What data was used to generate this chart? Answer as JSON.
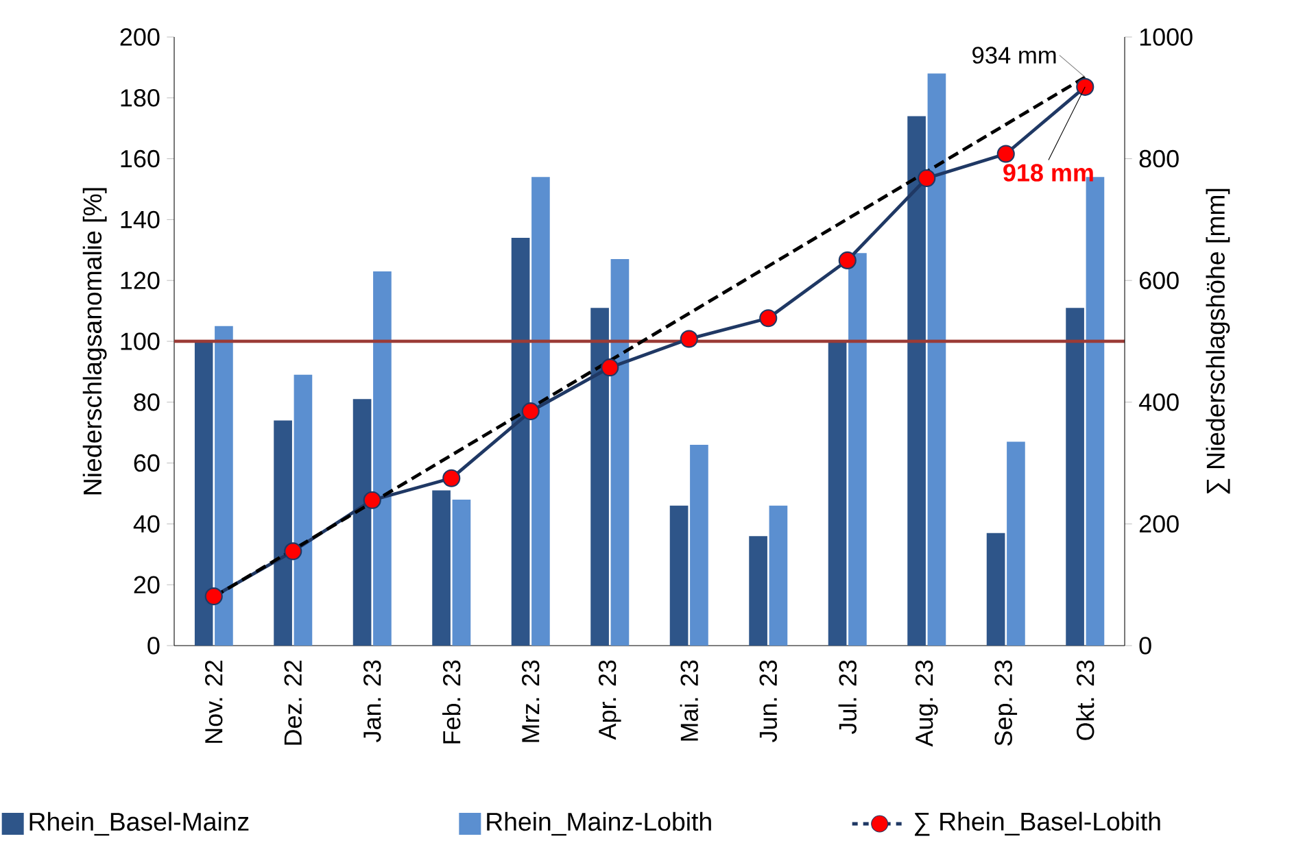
{
  "chart_data": {
    "type": "bar",
    "categories": [
      "Nov. 22",
      "Dez. 22",
      "Jan. 23",
      "Feb. 23",
      "Mrz. 23",
      "Apr. 23",
      "Mai. 23",
      "Jun. 23",
      "Jul. 23",
      "Aug. 23",
      "Sep. 23",
      "Okt. 23"
    ],
    "ylabel": "Niederschlagsanomalie [%]",
    "y2label": "∑ Niederschlagshöhe [mm]",
    "ylim": [
      0,
      200
    ],
    "yticks": [
      0,
      20,
      40,
      60,
      80,
      100,
      120,
      140,
      160,
      180,
      200
    ],
    "y2lim": [
      0,
      1000
    ],
    "y2ticks": [
      0,
      200,
      400,
      600,
      800,
      1000
    ],
    "series": [
      {
        "name": "Rhein_Basel-Mainz",
        "color": "#2e5589",
        "values": [
          100,
          74,
          81,
          51,
          134,
          111,
          46,
          36,
          100,
          174,
          37,
          111
        ]
      },
      {
        "name": "Rhein_Mainz-Lobith",
        "color": "#5b8fd0",
        "values": [
          105,
          89,
          123,
          48,
          154,
          127,
          66,
          46,
          129,
          188,
          67,
          154
        ]
      },
      {
        "name": "∑ Rhein_Basel-Lobith",
        "type": "line",
        "axis": "y2",
        "color": "#1f3864",
        "marker": "circle",
        "colors": [
          "#ff0000",
          "#ff0000",
          "#ff0000",
          "#ff0000",
          "#ff0000",
          "#ff0000",
          "#ff0000",
          "#ff0000",
          "#ff0000",
          "#ff0000",
          "#ff0000",
          "#ff0000"
        ],
        "values": [
          81,
          155,
          239,
          275,
          385,
          457,
          504,
          538,
          633,
          768,
          808,
          918
        ]
      },
      {
        "type": "line",
        "axis": "y2",
        "color": "#000000",
        "marker": "none",
        "line_style": "dashed",
        "values": [
          80,
          null,
          null,
          null,
          null,
          null,
          null,
          null,
          null,
          null,
          null,
          934
        ]
      }
    ],
    "ref_lines": [
      {
        "axis": "y",
        "value": 100,
        "color": "#9b3b36"
      }
    ],
    "annotations": [
      "934 mm",
      {
        "text": "918 mm",
        "x": "Okt. 23",
        "y": 183.6
      }
    ],
    "legend": "bottom"
  }
}
